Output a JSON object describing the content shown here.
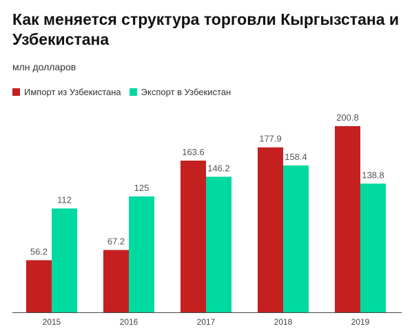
{
  "chart_data": {
    "type": "bar",
    "title": "Как меняется структура торговли Кыргызстана и Узбекистана",
    "subtitle": "млн долларов",
    "categories": [
      "2015",
      "2016",
      "2017",
      "2018",
      "2019"
    ],
    "series": [
      {
        "name": "Импорт из Узбекистана",
        "color": "#c42020",
        "values": [
          56.2,
          67.2,
          163.6,
          177.9,
          200.8
        ],
        "labels": [
          "56.2",
          "67.2",
          "163.6",
          "177.9",
          "200.8"
        ]
      },
      {
        "name": "Экспорт в Узбекистан",
        "color": "#00d9a0",
        "values": [
          112,
          125,
          146.2,
          158.4,
          138.8
        ],
        "labels": [
          "112",
          "125",
          "146.2",
          "158.4",
          "138.8"
        ]
      }
    ],
    "ylim": [
      0,
      220
    ],
    "grid": false,
    "legend_position": "top-left"
  }
}
